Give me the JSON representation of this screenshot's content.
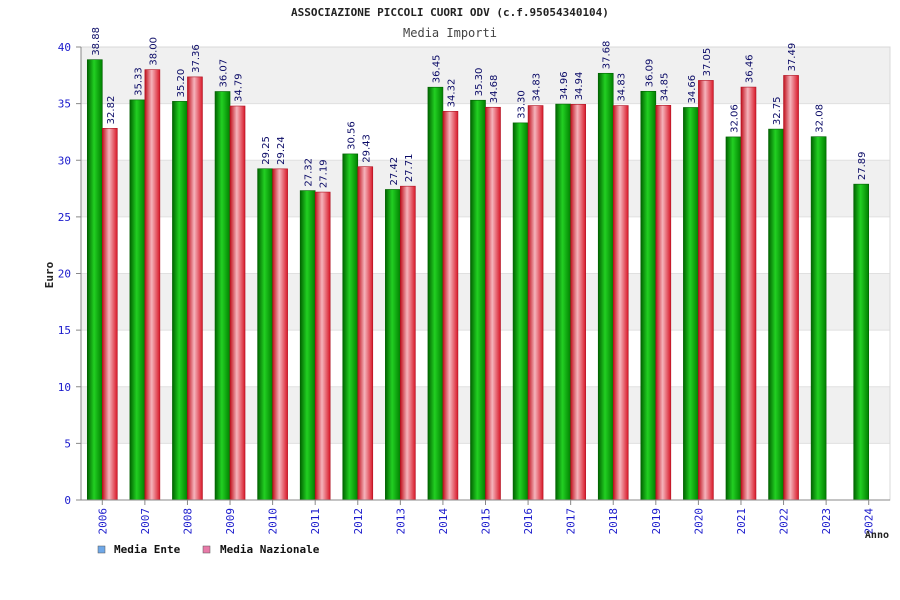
{
  "chart_data": {
    "type": "bar",
    "title": "ASSOCIAZIONE PICCOLI CUORI ODV (c.f.95054340104)",
    "subtitle": "Media Importi",
    "ylabel": "Euro",
    "xlabel": "Anno",
    "ylim": [
      0,
      40
    ],
    "yticks": [
      0,
      5,
      10,
      15,
      20,
      25,
      30,
      35,
      40
    ],
    "grid": "horizontal bands",
    "legend_position": "bottom-left",
    "categories": [
      "2006",
      "2007",
      "2008",
      "2009",
      "2010",
      "2011",
      "2012",
      "2013",
      "2014",
      "2015",
      "2016",
      "2017",
      "2018",
      "2019",
      "2020",
      "2021",
      "2022",
      "2023",
      "2024"
    ],
    "series": [
      {
        "name": "Media Ente",
        "color": "#00a000",
        "legend_color": "#6fa8e8",
        "values": [
          38.88,
          35.33,
          35.2,
          36.07,
          29.25,
          27.32,
          30.56,
          27.42,
          36.45,
          35.3,
          33.3,
          34.96,
          37.68,
          36.09,
          34.66,
          32.06,
          32.75,
          32.08,
          27.89
        ],
        "labels": [
          "38.88",
          "35.33",
          "35.20",
          "36.07",
          "29.25",
          "27.32",
          "30.56",
          "27.42",
          "36.45",
          "35.30",
          "33.30",
          "34.96",
          "37.68",
          "36.09",
          "34.66",
          "32.06",
          "32.75",
          "32.08",
          "27.89"
        ]
      },
      {
        "name": "Media Nazionale",
        "color": "#e82030",
        "legend_color": "#e87aa8",
        "values": [
          32.82,
          38.0,
          37.36,
          34.79,
          29.24,
          27.19,
          29.43,
          27.71,
          34.32,
          34.68,
          34.83,
          34.94,
          34.83,
          34.85,
          37.05,
          36.46,
          37.49,
          null,
          null
        ],
        "labels": [
          "32.82",
          "38.00",
          "37.36",
          "34.79",
          "29.24",
          "27.19",
          "29.43",
          "27.71",
          "34.32",
          "34.68",
          "34.83",
          "34.94",
          "34.83",
          "34.85",
          "37.05",
          "36.46",
          "37.49",
          null,
          null
        ]
      }
    ]
  }
}
